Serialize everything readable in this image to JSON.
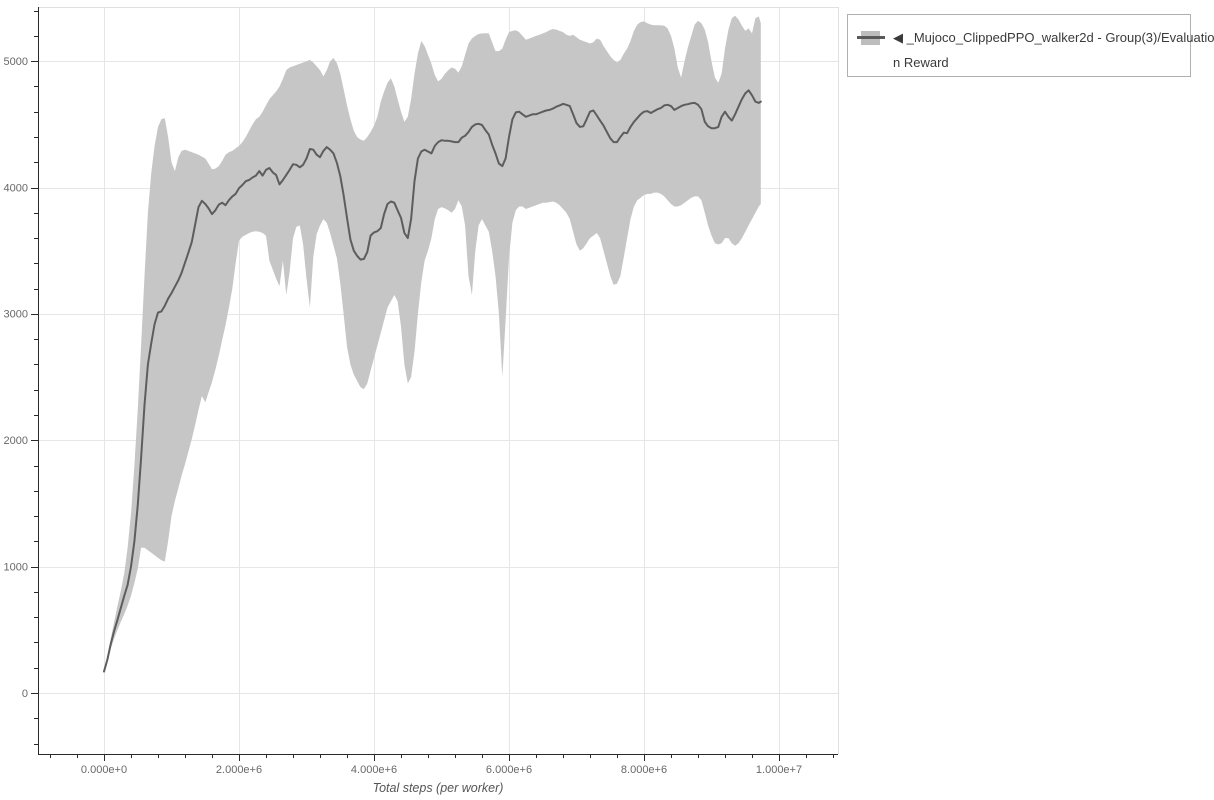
{
  "figure": {
    "background": "#ffffff"
  },
  "chart_data": {
    "type": "line",
    "title": "",
    "xlabel": "Total steps (per worker)",
    "ylabel": "",
    "grid": {
      "show_major": true,
      "color": "#e6e6e6"
    },
    "x_axis": {
      "lim_steps": [
        -978000,
        10874000
      ],
      "major_ticks_steps": [
        0,
        2000000,
        4000000,
        6000000,
        8000000,
        10000000
      ],
      "major_tick_labels": [
        "0.000e+0",
        "2.000e+6",
        "4.000e+6",
        "6.000e+6",
        "8.000e+6",
        "1.000e+7"
      ],
      "minor_tick_step": 400000
    },
    "y_axis": {
      "lim": [
        -483,
        5429
      ],
      "major_ticks": [
        0,
        1000,
        2000,
        3000,
        4000,
        5000
      ],
      "major_tick_labels": [
        "0",
        "1000",
        "2000",
        "3000",
        "4000",
        "5000"
      ],
      "minor_tick_step": 200
    },
    "legend": {
      "position": "outside-top-right",
      "entries": [
        {
          "label": "◀ _Mujoco_ClippedPPO_walker2d - Group(3)/Evaluation Reward",
          "lines": [
            "◀ _Mujoco_ClippedPPO_walker2d - Group(3)/Evaluatio",
            "n Reward"
          ],
          "band_color": "#bdbdbd",
          "line_color": "#5a5a5a"
        }
      ]
    },
    "colors": {
      "spine": "#2a2a2a",
      "outline": "#e0e0e0",
      "tick_label": "#686868",
      "axis_label": "#555555",
      "band": "#c6c6c6",
      "mean_line": "#5d5d5d"
    },
    "series": [
      {
        "name": "_Mujoco_ClippedPPO_walker2d - Group(3)/Evaluation Reward",
        "line_color": "#5d5d5d",
        "band_color": "#c6c6c6",
        "x_unit": "steps (millions)",
        "x_millions": [
          0.0,
          0.05,
          0.1,
          0.15,
          0.2,
          0.25,
          0.3,
          0.35,
          0.4,
          0.45,
          0.5,
          0.55,
          0.6,
          0.65,
          0.7,
          0.75,
          0.8,
          0.85,
          0.9,
          0.95,
          1.0,
          1.05,
          1.1,
          1.15,
          1.2,
          1.25,
          1.3,
          1.35,
          1.4,
          1.45,
          1.5,
          1.55,
          1.6,
          1.65,
          1.7,
          1.75,
          1.8,
          1.85,
          1.9,
          1.95,
          2.0,
          2.05,
          2.1,
          2.15,
          2.2,
          2.25,
          2.3,
          2.35,
          2.4,
          2.45,
          2.5,
          2.55,
          2.6,
          2.65,
          2.7,
          2.75,
          2.8,
          2.85,
          2.9,
          2.95,
          3.0,
          3.05,
          3.1,
          3.15,
          3.2,
          3.25,
          3.3,
          3.35,
          3.4,
          3.45,
          3.5,
          3.55,
          3.6,
          3.65,
          3.7,
          3.75,
          3.8,
          3.85,
          3.9,
          3.95,
          4.0,
          4.05,
          4.1,
          4.15,
          4.2,
          4.25,
          4.3,
          4.35,
          4.4,
          4.45,
          4.5,
          4.55,
          4.6,
          4.65,
          4.7,
          4.75,
          4.8,
          4.85,
          4.9,
          4.95,
          5.0,
          5.05,
          5.1,
          5.15,
          5.2,
          5.25,
          5.3,
          5.35,
          5.4,
          5.45,
          5.5,
          5.55,
          5.6,
          5.65,
          5.7,
          5.75,
          5.8,
          5.85,
          5.9,
          5.95,
          6.0,
          6.05,
          6.1,
          6.15,
          6.2,
          6.25,
          6.3,
          6.35,
          6.4,
          6.45,
          6.5,
          6.55,
          6.6,
          6.65,
          6.7,
          6.75,
          6.8,
          6.85,
          6.9,
          6.95,
          7.0,
          7.05,
          7.1,
          7.15,
          7.2,
          7.25,
          7.3,
          7.35,
          7.4,
          7.45,
          7.5,
          7.55,
          7.6,
          7.65,
          7.7,
          7.75,
          7.8,
          7.85,
          7.9,
          7.95,
          8.0,
          8.05,
          8.1,
          8.15,
          8.2,
          8.25,
          8.3,
          8.35,
          8.4,
          8.45,
          8.5,
          8.55,
          8.6,
          8.65,
          8.7,
          8.75,
          8.8,
          8.85,
          8.9,
          8.95,
          9.0,
          9.05,
          9.1,
          9.15,
          9.2,
          9.25,
          9.3,
          9.35,
          9.4,
          9.45,
          9.5,
          9.55,
          9.6,
          9.65,
          9.7,
          9.73
        ],
        "mean": [
          170,
          265,
          390,
          490,
          580,
          675,
          770,
          855,
          1000,
          1200,
          1490,
          1860,
          2280,
          2600,
          2770,
          2920,
          3010,
          3020,
          3065,
          3120,
          3165,
          3215,
          3265,
          3325,
          3405,
          3485,
          3570,
          3705,
          3845,
          3895,
          3870,
          3835,
          3790,
          3820,
          3865,
          3880,
          3860,
          3900,
          3930,
          3950,
          3995,
          4020,
          4050,
          4060,
          4080,
          4095,
          4130,
          4095,
          4140,
          4155,
          4120,
          4100,
          4025,
          4060,
          4100,
          4140,
          4185,
          4180,
          4160,
          4180,
          4230,
          4305,
          4300,
          4260,
          4240,
          4290,
          4320,
          4300,
          4270,
          4195,
          4090,
          3940,
          3760,
          3590,
          3500,
          3460,
          3430,
          3435,
          3490,
          3620,
          3645,
          3655,
          3680,
          3790,
          3870,
          3890,
          3880,
          3820,
          3760,
          3640,
          3600,
          3750,
          4050,
          4230,
          4285,
          4300,
          4285,
          4270,
          4330,
          4360,
          4375,
          4370,
          4370,
          4365,
          4360,
          4360,
          4395,
          4410,
          4440,
          4480,
          4500,
          4505,
          4495,
          4455,
          4420,
          4340,
          4270,
          4190,
          4170,
          4230,
          4400,
          4540,
          4595,
          4600,
          4580,
          4560,
          4570,
          4580,
          4580,
          4590,
          4600,
          4610,
          4615,
          4625,
          4640,
          4650,
          4662,
          4655,
          4645,
          4580,
          4510,
          4480,
          4485,
          4540,
          4600,
          4610,
          4570,
          4530,
          4490,
          4440,
          4390,
          4360,
          4360,
          4400,
          4435,
          4430,
          4480,
          4520,
          4550,
          4580,
          4600,
          4605,
          4590,
          4605,
          4620,
          4630,
          4650,
          4655,
          4645,
          4615,
          4630,
          4645,
          4655,
          4660,
          4668,
          4670,
          4655,
          4620,
          4520,
          4485,
          4470,
          4470,
          4480,
          4560,
          4600,
          4560,
          4530,
          4580,
          4640,
          4700,
          4745,
          4770,
          4730,
          4680,
          4670,
          4680
        ],
        "lower": [
          170,
          245,
          350,
          430,
          500,
          565,
          625,
          690,
          770,
          870,
          985,
          1150,
          1150,
          1130,
          1110,
          1090,
          1070,
          1050,
          1040,
          1200,
          1400,
          1520,
          1620,
          1720,
          1810,
          1910,
          2010,
          2120,
          2240,
          2350,
          2300,
          2380,
          2460,
          2560,
          2670,
          2790,
          2910,
          3050,
          3200,
          3400,
          3580,
          3610,
          3625,
          3640,
          3650,
          3655,
          3650,
          3640,
          3620,
          3420,
          3350,
          3280,
          3220,
          3420,
          3150,
          3330,
          3600,
          3690,
          3700,
          3550,
          3280,
          3050,
          3450,
          3630,
          3700,
          3750,
          3720,
          3640,
          3540,
          3440,
          3240,
          3000,
          2740,
          2600,
          2520,
          2470,
          2420,
          2405,
          2450,
          2550,
          2650,
          2750,
          2850,
          2950,
          3050,
          3100,
          3150,
          3100,
          2900,
          2600,
          2450,
          2500,
          2700,
          3000,
          3250,
          3420,
          3500,
          3600,
          3750,
          3830,
          3845,
          3835,
          3820,
          3800,
          3830,
          3900,
          3850,
          3700,
          3300,
          3150,
          3500,
          3700,
          3750,
          3700,
          3650,
          3500,
          3300,
          3000,
          2500,
          2950,
          3450,
          3720,
          3820,
          3850,
          3850,
          3830,
          3840,
          3850,
          3860,
          3870,
          3880,
          3880,
          3885,
          3890,
          3880,
          3860,
          3830,
          3800,
          3750,
          3650,
          3550,
          3500,
          3520,
          3560,
          3600,
          3620,
          3640,
          3600,
          3500,
          3400,
          3300,
          3230,
          3240,
          3300,
          3450,
          3600,
          3750,
          3850,
          3900,
          3920,
          3940,
          3950,
          3950,
          3960,
          3960,
          3950,
          3930,
          3900,
          3870,
          3850,
          3850,
          3860,
          3880,
          3900,
          3920,
          3930,
          3930,
          3900,
          3800,
          3700,
          3620,
          3560,
          3550,
          3560,
          3600,
          3600,
          3560,
          3540,
          3560,
          3600,
          3650,
          3700,
          3750,
          3800,
          3850,
          3870
        ],
        "upper": [
          170,
          285,
          430,
          560,
          690,
          810,
          950,
          1150,
          1420,
          1800,
          2250,
          2750,
          3300,
          3800,
          4120,
          4330,
          4480,
          4540,
          4550,
          4400,
          4200,
          4130,
          4240,
          4290,
          4300,
          4290,
          4280,
          4270,
          4260,
          4245,
          4230,
          4190,
          4145,
          4150,
          4170,
          4210,
          4260,
          4280,
          4290,
          4310,
          4330,
          4360,
          4400,
          4450,
          4500,
          4540,
          4560,
          4600,
          4650,
          4700,
          4730,
          4760,
          4800,
          4860,
          4930,
          4950,
          4960,
          4970,
          4980,
          4990,
          5000,
          5010,
          4990,
          4960,
          4930,
          4880,
          4930,
          5000,
          5025,
          4985,
          4900,
          4780,
          4650,
          4540,
          4450,
          4400,
          4380,
          4370,
          4400,
          4440,
          4490,
          4560,
          4680,
          4760,
          4830,
          4865,
          4800,
          4700,
          4600,
          4520,
          4560,
          4700,
          4900,
          5060,
          5160,
          5120,
          5050,
          4980,
          4890,
          4840,
          4860,
          4900,
          4930,
          4950,
          4940,
          4910,
          4960,
          5050,
          5140,
          5180,
          5200,
          5215,
          5220,
          5222,
          5220,
          5150,
          5080,
          5080,
          5100,
          5170,
          5230,
          5240,
          5245,
          5230,
          5200,
          5170,
          5180,
          5190,
          5200,
          5210,
          5220,
          5230,
          5245,
          5255,
          5250,
          5240,
          5230,
          5210,
          5200,
          5210,
          5190,
          5170,
          5160,
          5150,
          5140,
          5150,
          5180,
          5170,
          5120,
          5080,
          5040,
          5010,
          4990,
          5010,
          5060,
          5100,
          5160,
          5240,
          5290,
          5310,
          5315,
          5300,
          5290,
          5285,
          5285,
          5285,
          5280,
          5260,
          5200,
          5100,
          4950,
          4870,
          5000,
          5110,
          5200,
          5290,
          5320,
          5300,
          5250,
          5150,
          5000,
          4870,
          4830,
          4900,
          5100,
          5250,
          5340,
          5360,
          5330,
          5280,
          5240,
          5260,
          5220,
          5340,
          5355,
          5300
        ]
      }
    ]
  }
}
